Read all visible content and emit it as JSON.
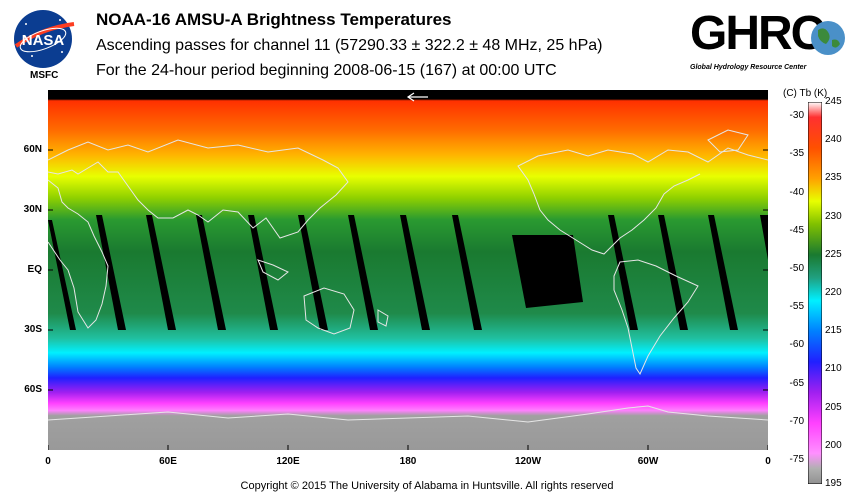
{
  "header": {
    "title": "NOAA-16 AMSU-A Brightness Temperatures",
    "subtitle": "Ascending passes for channel 11 (57290.33 ± 322.2 ± 48 MHz, 25 hPa)",
    "period": "For the 24-hour period beginning 2008-06-15 (167) at 00:00 UTC"
  },
  "logos": {
    "nasa_text": "NASA",
    "nasa_label": "MSFC",
    "ghrc_text": "GHRC",
    "ghrc_subtitle": "Global Hydrology Resource Center"
  },
  "map": {
    "lat_labels": [
      "60N",
      "30N",
      "EQ",
      "30S",
      "60S"
    ],
    "lat_values": [
      60,
      30,
      0,
      -30,
      -60
    ],
    "lon_labels": [
      "0",
      "60E",
      "120E",
      "180",
      "120W",
      "60W",
      "0"
    ],
    "lon_values": [
      0,
      60,
      120,
      180,
      240,
      300,
      360
    ]
  },
  "colorbar": {
    "header": "(C)  Tb  (K)",
    "celsius_labels": [
      "-30",
      "-35",
      "-40",
      "-45",
      "-50",
      "-55",
      "-60",
      "-65",
      "-70",
      "-75"
    ],
    "celsius_values": [
      -30,
      -35,
      -40,
      -45,
      -50,
      -55,
      -60,
      -65,
      -70,
      -75
    ],
    "kelvin_labels": [
      "245",
      "240",
      "235",
      "230",
      "225",
      "220",
      "215",
      "210",
      "205",
      "200",
      "195"
    ],
    "kelvin_values": [
      245,
      240,
      235,
      230,
      225,
      220,
      215,
      210,
      205,
      200,
      195
    ],
    "range_k": [
      195,
      245
    ]
  },
  "footer": {
    "copyright": "Copyright © 2015 The University of Alabama in Huntsville.  All rights reserved"
  }
}
